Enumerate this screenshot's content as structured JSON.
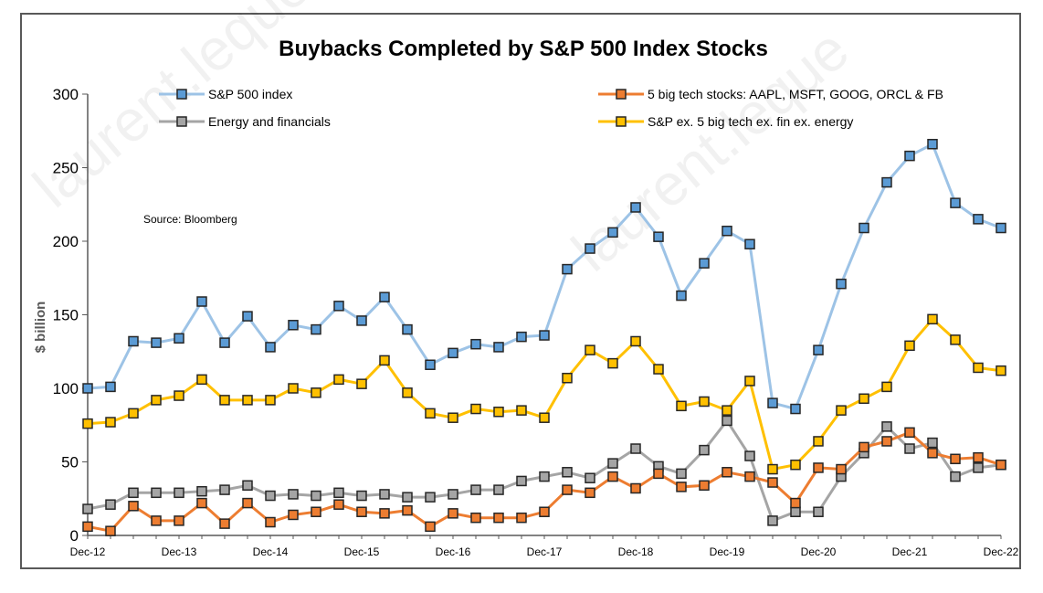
{
  "chart_data": {
    "type": "line",
    "title": "Buybacks Completed by S&P 500 Index Stocks",
    "ylabel": "$ billion",
    "xlabel": "",
    "ylim": [
      0,
      300
    ],
    "yticks": [
      0,
      50,
      100,
      150,
      200,
      250,
      300
    ],
    "x_tick_labels": [
      "Dec-12",
      "Dec-13",
      "Dec-14",
      "Dec-15",
      "Dec-16",
      "Dec-17",
      "Dec-18",
      "Dec-19",
      "Dec-20",
      "Dec-21",
      "Dec-22"
    ],
    "points_per_tick": 4,
    "grid": false,
    "legend": "top",
    "source_note": "Source: Bloomberg",
    "series": [
      {
        "name": "S&P 500 index",
        "color": "#9dc3e6",
        "marker_fill": "#5b9bd5",
        "values": [
          100,
          101,
          132,
          131,
          134,
          159,
          131,
          149,
          128,
          143,
          140,
          156,
          146,
          162,
          140,
          116,
          124,
          130,
          128,
          135,
          136,
          181,
          195,
          206,
          223,
          203,
          163,
          185,
          207,
          198,
          90,
          86,
          126,
          171,
          209,
          240,
          258,
          266,
          226,
          215,
          209
        ]
      },
      {
        "name": "5 big tech stocks: AAPL, MSFT, GOOG, ORCL & FB",
        "color": "#ed7d31",
        "marker_fill": "#ed7d31",
        "values": [
          6,
          3,
          20,
          10,
          10,
          22,
          8,
          22,
          9,
          14,
          16,
          21,
          16,
          15,
          17,
          6,
          15,
          12,
          12,
          12,
          16,
          31,
          29,
          40,
          32,
          42,
          33,
          34,
          43,
          40,
          36,
          22,
          46,
          45,
          60,
          64,
          70,
          56,
          52,
          53,
          48
        ]
      },
      {
        "name": "Energy and financials",
        "color": "#a5a5a5",
        "marker_fill": "#a5a5a5",
        "values": [
          18,
          21,
          29,
          29,
          29,
          30,
          31,
          34,
          27,
          28,
          27,
          29,
          27,
          28,
          26,
          26,
          28,
          31,
          31,
          37,
          40,
          43,
          39,
          49,
          59,
          47,
          42,
          58,
          78,
          54,
          10,
          16,
          16,
          40,
          56,
          74,
          59,
          63,
          40,
          46,
          48
        ]
      },
      {
        "name": "S&P ex. 5 big tech ex. fin ex. energy",
        "color": "#ffc000",
        "marker_fill": "#ffc000",
        "values": [
          76,
          77,
          83,
          92,
          95,
          106,
          92,
          92,
          92,
          100,
          97,
          106,
          103,
          119,
          97,
          83,
          80,
          86,
          84,
          85,
          80,
          107,
          126,
          117,
          132,
          113,
          88,
          91,
          85,
          105,
          45,
          48,
          64,
          85,
          93,
          101,
          129,
          147,
          133,
          114,
          112
        ]
      }
    ]
  }
}
